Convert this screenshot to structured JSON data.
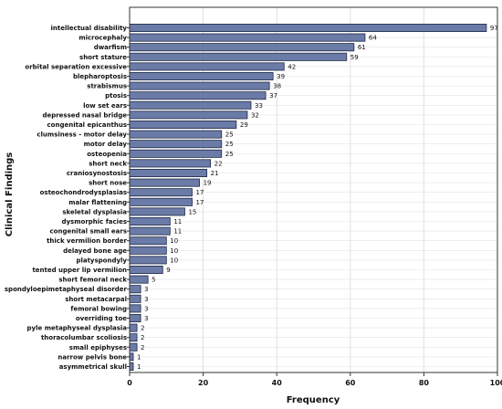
{
  "chart_data": {
    "type": "bar",
    "orientation": "horizontal",
    "xlabel": "Frequency",
    "ylabel": "Clinical Findings",
    "xlim": [
      0,
      100
    ],
    "x_ticks": [
      0,
      20,
      40,
      60,
      80,
      100
    ],
    "grid": true,
    "bar_color": "#6b7ba8",
    "bar_edge_color": "#1f2a44",
    "categories": [
      "intellectual disability",
      "microcephaly",
      "dwarfism",
      "short stature",
      "orbital separation excessive",
      "blepharoptosis",
      "strabismus",
      "ptosis",
      "low set ears",
      "depressed nasal bridge",
      "congenital epicanthus",
      "clumsiness - motor delay",
      "motor delay",
      "osteopenia",
      "short neck",
      "craniosynostosis",
      "short nose",
      "osteochondrodysplasias",
      "malar flattening",
      "skeletal dysplasia",
      "dysmorphic facies",
      "congenital small ears",
      "thick vermilion border",
      "delayed bone age",
      "platyspondyly",
      "tented upper lip vermilion",
      "short femoral neck",
      "spondyloepimetaphyseal disorder",
      "short metacarpal",
      "femoral bowing",
      "overriding toe",
      "pyle metaphyseal dysplasia",
      "thoracolumbar scoliosis",
      "small epiphyses",
      "narrow pelvis bone",
      "asymmetrical skull"
    ],
    "values": [
      97,
      64,
      61,
      59,
      42,
      39,
      38,
      37,
      33,
      32,
      29,
      25,
      25,
      25,
      22,
      21,
      19,
      17,
      17,
      15,
      11,
      11,
      10,
      10,
      10,
      9,
      5,
      3,
      3,
      3,
      3,
      2,
      2,
      2,
      1,
      1
    ]
  }
}
